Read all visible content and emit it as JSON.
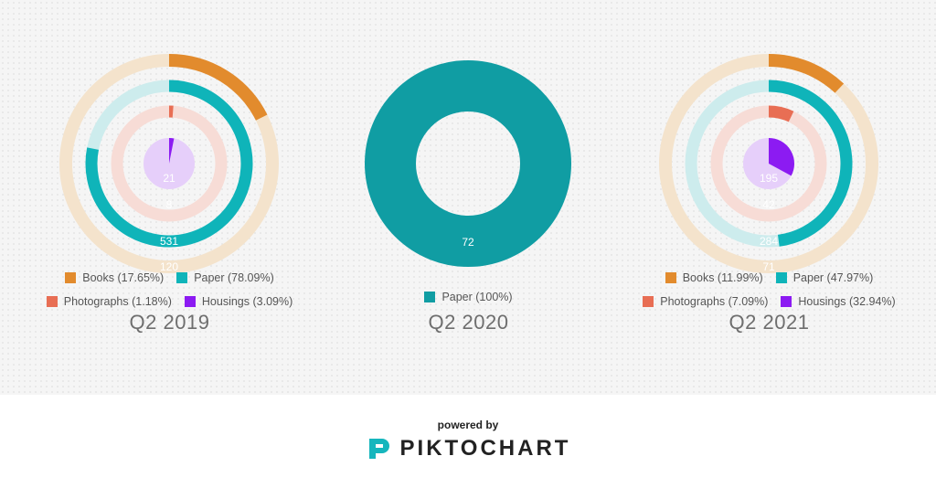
{
  "colors": {
    "books": "#e28b2d",
    "paper": "#0fb4b9",
    "paper_full": "#109da3",
    "photographs": "#e86e54",
    "housings": "#8c1bf2",
    "track_books": "#f4e3cc",
    "track_paper": "#cdeced",
    "track_photographs": "#f7dcd6",
    "track_housings": "#e6cffa"
  },
  "chart_data": [
    {
      "type": "radial-bar",
      "title": "Q2 2019",
      "series": [
        {
          "name": "Books",
          "key": "books",
          "value": 120,
          "percent": "17.65%",
          "label": "Books (17.65%)"
        },
        {
          "name": "Paper",
          "key": "paper",
          "value": 531,
          "percent": "78.09%",
          "label": "Paper (78.09%)"
        },
        {
          "name": "Photographs",
          "key": "photographs",
          "value": 8,
          "percent": "1.18%",
          "label": "Photographs (1.18%)"
        },
        {
          "name": "Housings",
          "key": "housings",
          "value": 21,
          "percent": "3.09%",
          "label": "Housings (3.09%)"
        }
      ]
    },
    {
      "type": "donut",
      "title": "Q2 2020",
      "series": [
        {
          "name": "Paper",
          "key": "paper_full",
          "value": 72,
          "percent": "100%",
          "label": "Paper (100%)"
        }
      ]
    },
    {
      "type": "radial-bar",
      "title": "Q2 2021",
      "series": [
        {
          "name": "Books",
          "key": "books",
          "value": 71,
          "percent": "11.99%",
          "label": "Books (11.99%)"
        },
        {
          "name": "Paper",
          "key": "paper",
          "value": 284,
          "percent": "47.97%",
          "label": "Paper (47.97%)"
        },
        {
          "name": "Photographs",
          "key": "photographs",
          "value": 42,
          "percent": "7.09%",
          "label": "Photographs (7.09%)"
        },
        {
          "name": "Housings",
          "key": "housings",
          "value": 195,
          "percent": "32.94%",
          "label": "Housings (32.94%)"
        }
      ]
    }
  ],
  "footer": {
    "powered_by": "powered by",
    "brand": "PIKTOCHART"
  }
}
